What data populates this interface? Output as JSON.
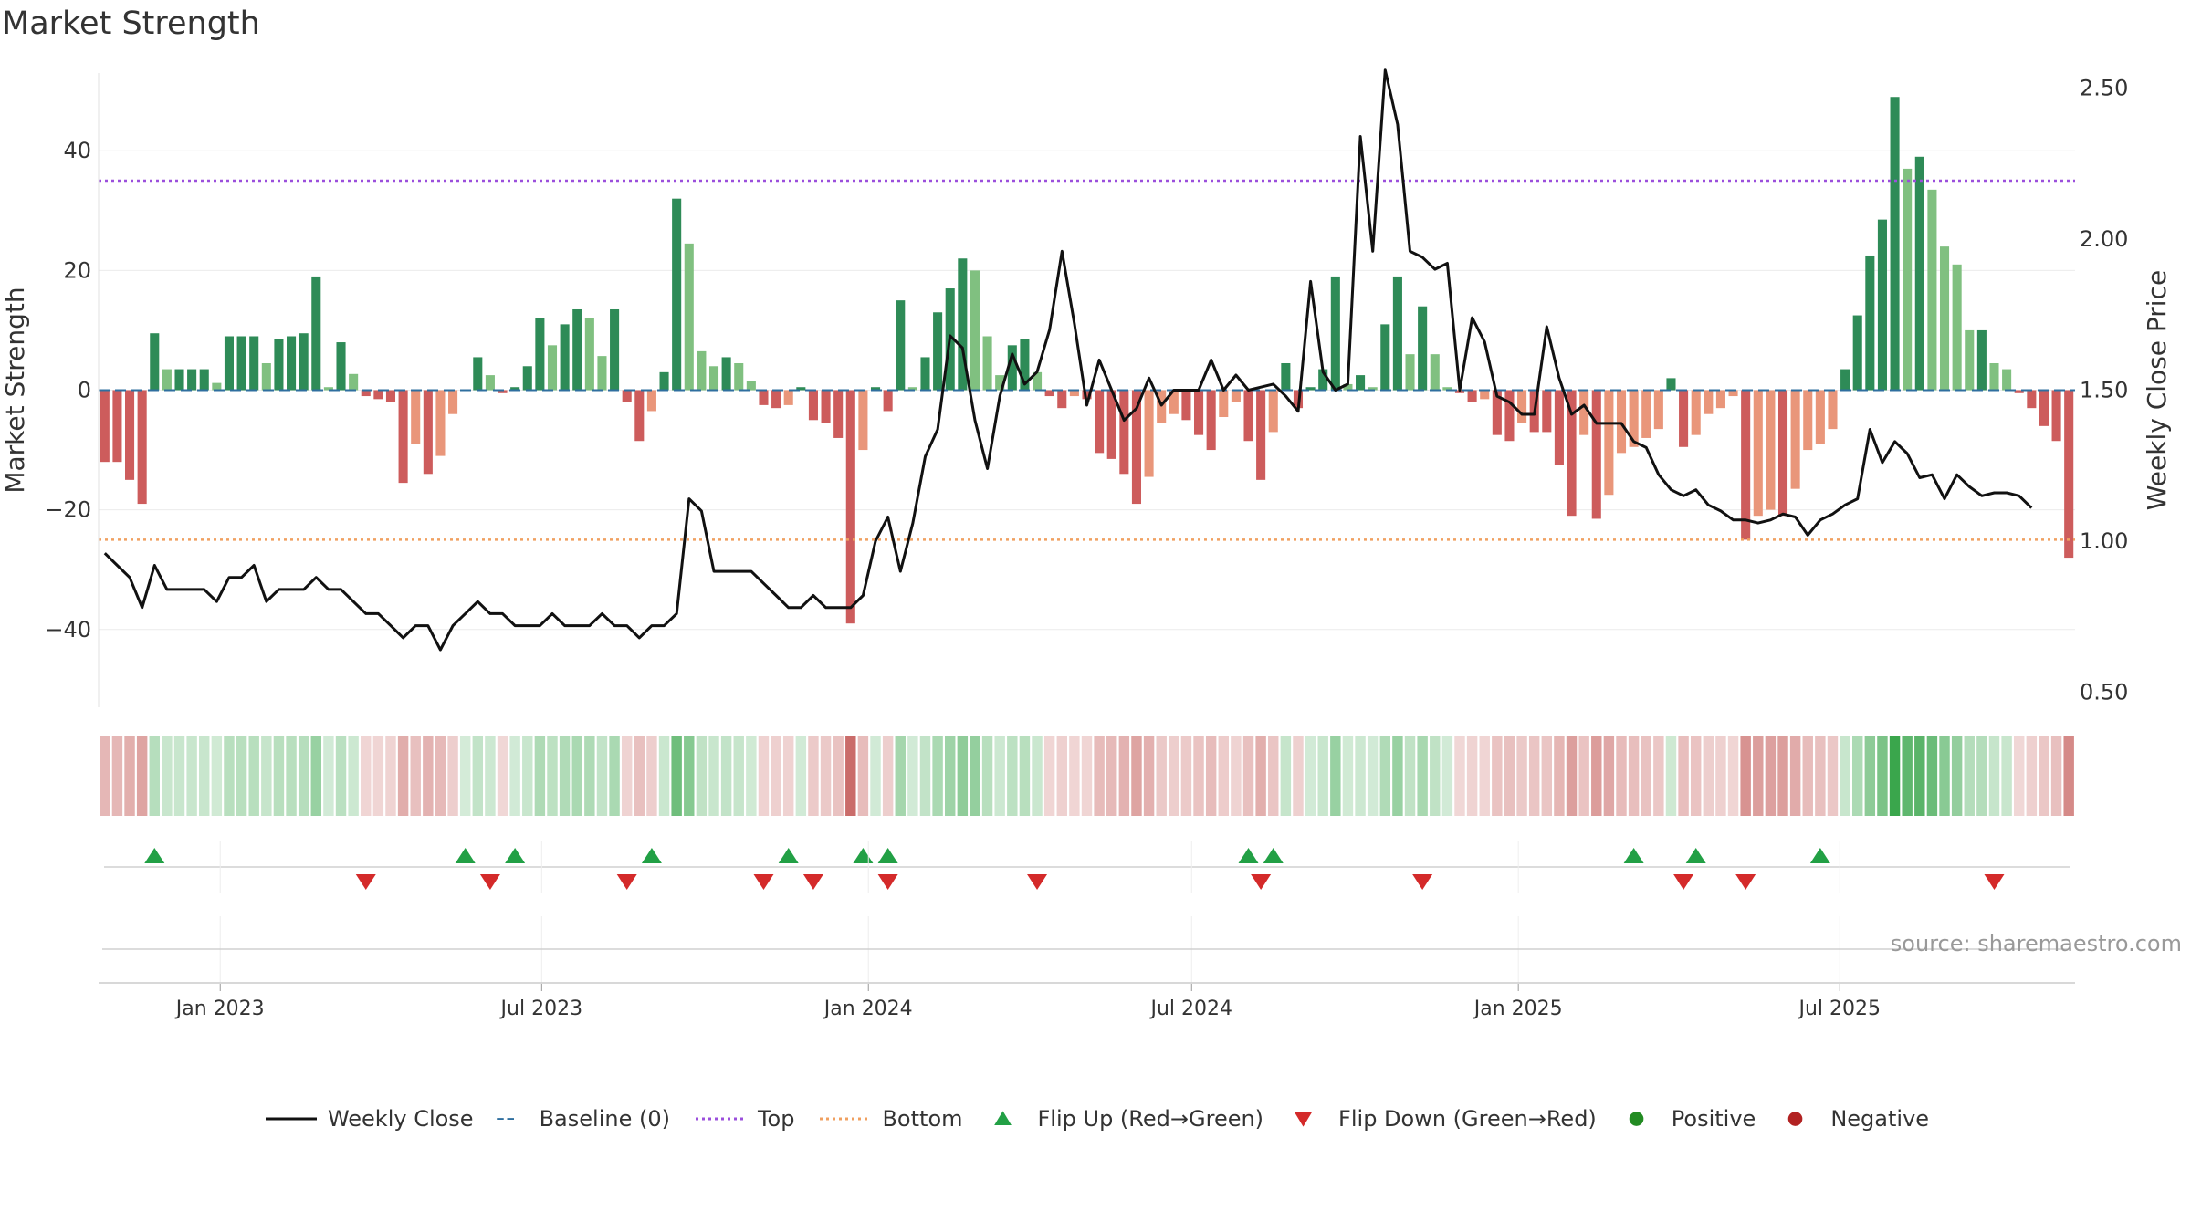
{
  "title": "Market Strength",
  "source": "source: sharemaestro.com",
  "legend": {
    "weekly_close": "Weekly Close",
    "baseline": "Baseline (0)",
    "top": "Top",
    "bottom": "Bottom",
    "flip_up": "Flip Up (Red→Green)",
    "flip_down": "Flip Down (Green→Red)",
    "positive": "Positive",
    "negative": "Negative"
  },
  "colors": {
    "pos_dark": "#2e8b57",
    "pos_light": "#80c080",
    "neg_dark": "#cd5c5c",
    "neg_light": "#e9967a",
    "top_line": "#9b4fdc",
    "bottom_line": "#f0a060",
    "baseline": "#2f6f9f",
    "flip_up": "#22a045",
    "flip_down": "#d42a2a",
    "positive_dot": "#228b22",
    "negative_dot": "#b22222",
    "price_line": "#111111"
  },
  "chart_data": {
    "type": "bar",
    "title": "Market Strength",
    "ylabel": "Market Strength",
    "y2label": "Weekly Close Price",
    "ylim": [
      -53,
      53
    ],
    "y2lim": [
      0.45,
      2.55
    ],
    "yticks": [
      -40,
      -20,
      0,
      20,
      40
    ],
    "ytick_labels": [
      "−40",
      "−20",
      "0",
      "20",
      "40"
    ],
    "y2ticks": [
      0.5,
      1.0,
      1.5,
      2.0,
      2.5
    ],
    "y2tick_labels": [
      "0.50",
      "1.00",
      "1.50",
      "2.00",
      "2.50"
    ],
    "top_level": 35,
    "bottom_level": -25,
    "start_date": "2022-10-28",
    "x_ticks": [
      {
        "date": "2023-01-01",
        "label": "Jan 2023"
      },
      {
        "date": "2023-07-01",
        "label": "Jul 2023"
      },
      {
        "date": "2024-01-01",
        "label": "Jan 2024"
      },
      {
        "date": "2024-07-01",
        "label": "Jul 2024"
      },
      {
        "date": "2025-01-01",
        "label": "Jan 2025"
      },
      {
        "date": "2025-07-01",
        "label": "Jul 2025"
      }
    ],
    "grid": true,
    "legend_position": "bottom",
    "strength": [
      -12,
      -12,
      -15,
      -19,
      9.5,
      3.5,
      3.5,
      3.5,
      3.5,
      1.2,
      9,
      9,
      9,
      4.5,
      8.5,
      9,
      9.5,
      19,
      0.5,
      8,
      2.7,
      -1,
      -1.5,
      -2,
      -15.5,
      -9,
      -14,
      -11,
      -4,
      0,
      5.5,
      2.5,
      -0.5,
      0.5,
      4,
      12,
      7.5,
      11,
      13.5,
      12,
      5.7,
      13.5,
      -2,
      -8.5,
      -3.5,
      3,
      32,
      24.5,
      6.5,
      4,
      5.5,
      4.5,
      1.5,
      -2.5,
      -3,
      -2.5,
      0.5,
      -5,
      -5.5,
      -8,
      -39,
      -10,
      0.5,
      -3.5,
      15,
      0.5,
      5.5,
      13,
      17,
      22,
      20,
      9,
      2.5,
      7.5,
      8.5,
      3,
      -1,
      -3,
      -1,
      -1.5,
      -10.5,
      -11.5,
      -14,
      -19,
      -14.5,
      -5.5,
      -4,
      -5,
      -7.5,
      -10,
      -4.5,
      -2,
      -8.5,
      -15,
      -7,
      4.5,
      -3,
      0.5,
      3.5,
      19,
      1,
      2.5,
      0.5,
      11,
      19,
      6,
      14,
      6,
      0.5,
      -0.5,
      -2,
      -1.5,
      -7.5,
      -8.5,
      -5.5,
      -7,
      -7,
      -12.5,
      -21,
      -7.5,
      -21.5,
      -17.5,
      -10.5,
      -9.5,
      -8,
      -6.5,
      2,
      -9.5,
      -7.5,
      -4,
      -3,
      -1,
      -25,
      -21,
      -20,
      -21,
      -16.5,
      -10,
      -9,
      -6.5,
      3.5,
      12.5,
      22.5,
      28.5,
      49,
      37,
      39,
      33.5,
      24,
      21,
      10,
      10,
      4.5,
      3.5,
      -0.5,
      -3,
      -6,
      -8.5,
      -28
    ],
    "close": [
      0.96,
      0.92,
      0.88,
      0.78,
      0.92,
      0.84,
      0.84,
      0.84,
      0.84,
      0.8,
      0.88,
      0.88,
      0.92,
      0.8,
      0.84,
      0.84,
      0.84,
      0.88,
      0.84,
      0.84,
      0.8,
      0.76,
      0.76,
      0.72,
      0.68,
      0.72,
      0.72,
      0.64,
      0.72,
      0.76,
      0.8,
      0.76,
      0.76,
      0.72,
      0.72,
      0.72,
      0.76,
      0.72,
      0.72,
      0.72,
      0.76,
      0.72,
      0.72,
      0.68,
      0.72,
      0.72,
      0.76,
      1.14,
      1.1,
      0.9,
      0.9,
      0.9,
      0.9,
      0.86,
      0.82,
      0.78,
      0.78,
      0.82,
      0.78,
      0.78,
      0.78,
      0.82,
      1.0,
      1.08,
      0.9,
      1.06,
      1.28,
      1.37,
      1.68,
      1.64,
      1.4,
      1.24,
      1.48,
      1.62,
      1.52,
      1.56,
      1.7,
      1.96,
      1.72,
      1.45,
      1.6,
      1.5,
      1.4,
      1.44,
      1.54,
      1.45,
      1.5,
      1.5,
      1.5,
      1.6,
      1.5,
      1.55,
      1.5,
      1.51,
      1.52,
      1.48,
      1.43,
      1.86,
      1.56,
      1.5,
      1.52,
      2.34,
      1.96,
      2.56,
      2.38,
      1.96,
      1.94,
      1.9,
      1.92,
      1.5,
      1.74,
      1.66,
      1.48,
      1.46,
      1.42,
      1.42,
      1.71,
      1.54,
      1.42,
      1.45,
      1.39,
      1.39,
      1.39,
      1.33,
      1.31,
      1.22,
      1.17,
      1.15,
      1.17,
      1.12,
      1.1,
      1.07,
      1.07,
      1.06,
      1.07,
      1.09,
      1.08,
      1.02,
      1.07,
      1.09,
      1.12,
      1.14,
      1.37,
      1.26,
      1.33,
      1.29,
      1.21,
      1.22,
      1.14,
      1.22,
      1.18,
      1.15,
      1.16,
      1.16,
      1.15,
      1.11
    ],
    "flip_up_weeks": [
      4,
      29,
      33,
      44,
      55,
      61,
      63,
      92,
      94,
      123,
      128,
      138
    ],
    "flip_down_weeks": [
      21,
      31,
      42,
      53,
      57,
      63,
      75,
      93,
      106,
      127,
      132,
      152
    ]
  }
}
